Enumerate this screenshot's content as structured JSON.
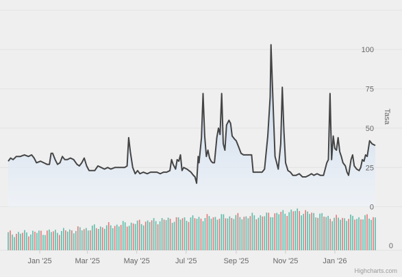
{
  "chart_data": {
    "type": "line",
    "title": "",
    "y_axis_label": "Tasa",
    "y_ticks": [
      0,
      25,
      50,
      75,
      100
    ],
    "volume_axis_ticks": [
      0
    ],
    "x_ticks": [
      {
        "label": "Jan '25",
        "date": "2025-01-01"
      },
      {
        "label": "Mar '25",
        "date": "2025-03-01"
      },
      {
        "label": "May '25",
        "date": "2025-05-01"
      },
      {
        "label": "Jul '25",
        "date": "2025-07-01"
      },
      {
        "label": "Sep '25",
        "date": "2025-09-01"
      },
      {
        "label": "Nov '25",
        "date": "2025-11-01"
      },
      {
        "label": "Jan '26",
        "date": "2026-01-01"
      }
    ],
    "x_range": [
      "2024-11-23",
      "2026-02-20"
    ],
    "ylim": [
      -32,
      128
    ],
    "grid": true,
    "legend": "none",
    "colors": {
      "line": "#444444",
      "area_top": "#b9cfe8",
      "area_bottom": "#eef3f9",
      "volume_up": "#5fbcaa",
      "volume_down": "#e57878",
      "gridline": "#e2e2e2",
      "background": "#efefef"
    },
    "series": [
      {
        "type": "area-line",
        "points": [
          [
            "2024-11-23",
            29
          ],
          [
            "2024-11-26",
            31
          ],
          [
            "2024-11-29",
            30
          ],
          [
            "2024-12-03",
            32
          ],
          [
            "2024-12-08",
            32
          ],
          [
            "2024-12-13",
            33
          ],
          [
            "2024-12-18",
            32
          ],
          [
            "2024-12-22",
            33
          ],
          [
            "2024-12-25",
            31
          ],
          [
            "2024-12-28",
            28
          ],
          [
            "2025-01-02",
            29
          ],
          [
            "2025-01-06",
            28
          ],
          [
            "2025-01-10",
            27
          ],
          [
            "2025-01-13",
            27
          ],
          [
            "2025-01-15",
            34
          ],
          [
            "2025-01-17",
            34
          ],
          [
            "2025-01-20",
            30
          ],
          [
            "2025-01-23",
            27
          ],
          [
            "2025-01-26",
            28
          ],
          [
            "2025-01-29",
            32
          ],
          [
            "2025-02-01",
            30
          ],
          [
            "2025-02-04",
            30
          ],
          [
            "2025-02-08",
            31
          ],
          [
            "2025-02-12",
            30
          ],
          [
            "2025-02-16",
            27
          ],
          [
            "2025-02-19",
            26
          ],
          [
            "2025-02-22",
            28
          ],
          [
            "2025-02-25",
            31
          ],
          [
            "2025-02-28",
            26
          ],
          [
            "2025-03-03",
            23
          ],
          [
            "2025-03-07",
            23
          ],
          [
            "2025-03-10",
            23
          ],
          [
            "2025-03-14",
            26
          ],
          [
            "2025-03-18",
            25
          ],
          [
            "2025-03-22",
            24
          ],
          [
            "2025-03-26",
            25
          ],
          [
            "2025-03-30",
            24
          ],
          [
            "2025-04-04",
            25
          ],
          [
            "2025-04-08",
            25
          ],
          [
            "2025-04-12",
            25
          ],
          [
            "2025-04-16",
            25
          ],
          [
            "2025-04-19",
            26
          ],
          [
            "2025-04-21",
            44
          ],
          [
            "2025-04-23",
            35
          ],
          [
            "2025-04-26",
            25
          ],
          [
            "2025-04-29",
            21
          ],
          [
            "2025-05-02",
            23
          ],
          [
            "2025-05-05",
            21
          ],
          [
            "2025-05-09",
            22
          ],
          [
            "2025-05-14",
            21
          ],
          [
            "2025-05-18",
            22
          ],
          [
            "2025-05-22",
            22
          ],
          [
            "2025-05-26",
            22
          ],
          [
            "2025-05-30",
            21
          ],
          [
            "2025-06-03",
            22
          ],
          [
            "2025-06-07",
            22
          ],
          [
            "2025-06-11",
            23
          ],
          [
            "2025-06-13",
            30
          ],
          [
            "2025-06-15",
            27
          ],
          [
            "2025-06-18",
            24
          ],
          [
            "2025-06-20",
            30
          ],
          [
            "2025-06-22",
            29
          ],
          [
            "2025-06-24",
            33
          ],
          [
            "2025-06-26",
            23
          ],
          [
            "2025-06-28",
            25
          ],
          [
            "2025-07-02",
            24
          ],
          [
            "2025-07-07",
            22
          ],
          [
            "2025-07-10",
            20
          ],
          [
            "2025-07-12",
            19
          ],
          [
            "2025-07-14",
            15
          ],
          [
            "2025-07-16",
            32
          ],
          [
            "2025-07-17",
            28
          ],
          [
            "2025-07-20",
            44
          ],
          [
            "2025-07-22",
            72
          ],
          [
            "2025-07-24",
            45
          ],
          [
            "2025-07-26",
            32
          ],
          [
            "2025-07-28",
            36
          ],
          [
            "2025-07-30",
            31
          ],
          [
            "2025-08-01",
            29
          ],
          [
            "2025-08-03",
            28
          ],
          [
            "2025-08-05",
            28
          ],
          [
            "2025-08-08",
            44
          ],
          [
            "2025-08-10",
            50
          ],
          [
            "2025-08-12",
            46
          ],
          [
            "2025-08-14",
            72
          ],
          [
            "2025-08-16",
            40
          ],
          [
            "2025-08-18",
            36
          ],
          [
            "2025-08-20",
            52
          ],
          [
            "2025-08-23",
            55
          ],
          [
            "2025-08-25",
            53
          ],
          [
            "2025-08-27",
            45
          ],
          [
            "2025-08-30",
            43
          ],
          [
            "2025-09-01",
            42
          ],
          [
            "2025-09-04",
            38
          ],
          [
            "2025-09-07",
            34
          ],
          [
            "2025-09-10",
            33
          ],
          [
            "2025-09-14",
            33
          ],
          [
            "2025-09-18",
            33
          ],
          [
            "2025-09-20",
            33
          ],
          [
            "2025-09-22",
            22
          ],
          [
            "2025-09-26",
            22
          ],
          [
            "2025-09-30",
            22
          ],
          [
            "2025-10-03",
            22
          ],
          [
            "2025-10-06",
            24
          ],
          [
            "2025-10-10",
            45
          ],
          [
            "2025-10-13",
            70
          ],
          [
            "2025-10-14",
            103
          ],
          [
            "2025-10-17",
            60
          ],
          [
            "2025-10-19",
            32
          ],
          [
            "2025-10-21",
            28
          ],
          [
            "2025-10-23",
            24
          ],
          [
            "2025-10-26",
            40
          ],
          [
            "2025-10-28",
            76
          ],
          [
            "2025-10-30",
            48
          ],
          [
            "2025-11-01",
            28
          ],
          [
            "2025-11-04",
            23
          ],
          [
            "2025-11-07",
            22
          ],
          [
            "2025-11-10",
            20
          ],
          [
            "2025-11-14",
            20
          ],
          [
            "2025-11-18",
            21
          ],
          [
            "2025-11-22",
            19
          ],
          [
            "2025-11-26",
            19
          ],
          [
            "2025-11-30",
            20
          ],
          [
            "2025-12-03",
            21
          ],
          [
            "2025-12-06",
            20
          ],
          [
            "2025-12-10",
            21
          ],
          [
            "2025-12-14",
            20
          ],
          [
            "2025-12-18",
            20
          ],
          [
            "2025-12-20",
            24
          ],
          [
            "2025-12-22",
            28
          ],
          [
            "2025-12-24",
            30
          ],
          [
            "2025-12-26",
            72
          ],
          [
            "2025-12-28",
            30
          ],
          [
            "2025-12-30",
            45
          ],
          [
            "2026-01-01",
            37
          ],
          [
            "2026-01-03",
            36
          ],
          [
            "2026-01-05",
            44
          ],
          [
            "2026-01-07",
            35
          ],
          [
            "2026-01-09",
            32
          ],
          [
            "2026-01-11",
            28
          ],
          [
            "2026-01-14",
            26
          ],
          [
            "2026-01-16",
            22
          ],
          [
            "2026-01-18",
            20
          ],
          [
            "2026-01-21",
            30
          ],
          [
            "2026-01-23",
            33
          ],
          [
            "2026-01-25",
            26
          ],
          [
            "2026-01-28",
            24
          ],
          [
            "2026-01-31",
            23
          ],
          [
            "2026-02-02",
            25
          ],
          [
            "2026-02-04",
            30
          ],
          [
            "2026-02-06",
            29
          ],
          [
            "2026-02-08",
            33
          ],
          [
            "2026-02-10",
            32
          ],
          [
            "2026-02-13",
            42
          ],
          [
            "2026-02-16",
            40
          ],
          [
            "2026-02-20",
            39
          ]
        ]
      }
    ],
    "volume": {
      "start_date": "2024-11-23",
      "end_date": "2026-02-20",
      "count": 180,
      "pattern": "alternating up/down bars, gradually rising from low at left to higher at right",
      "levels": [
        [
          "2024-11-23",
          0.3
        ],
        [
          "2025-02-01",
          0.35
        ],
        [
          "2025-04-01",
          0.45
        ],
        [
          "2025-06-01",
          0.55
        ],
        [
          "2025-08-01",
          0.6
        ],
        [
          "2025-10-01",
          0.62
        ],
        [
          "2025-11-15",
          0.72
        ],
        [
          "2026-01-01",
          0.58
        ],
        [
          "2026-02-20",
          0.6
        ]
      ]
    },
    "credits": "Highcharts.com"
  }
}
